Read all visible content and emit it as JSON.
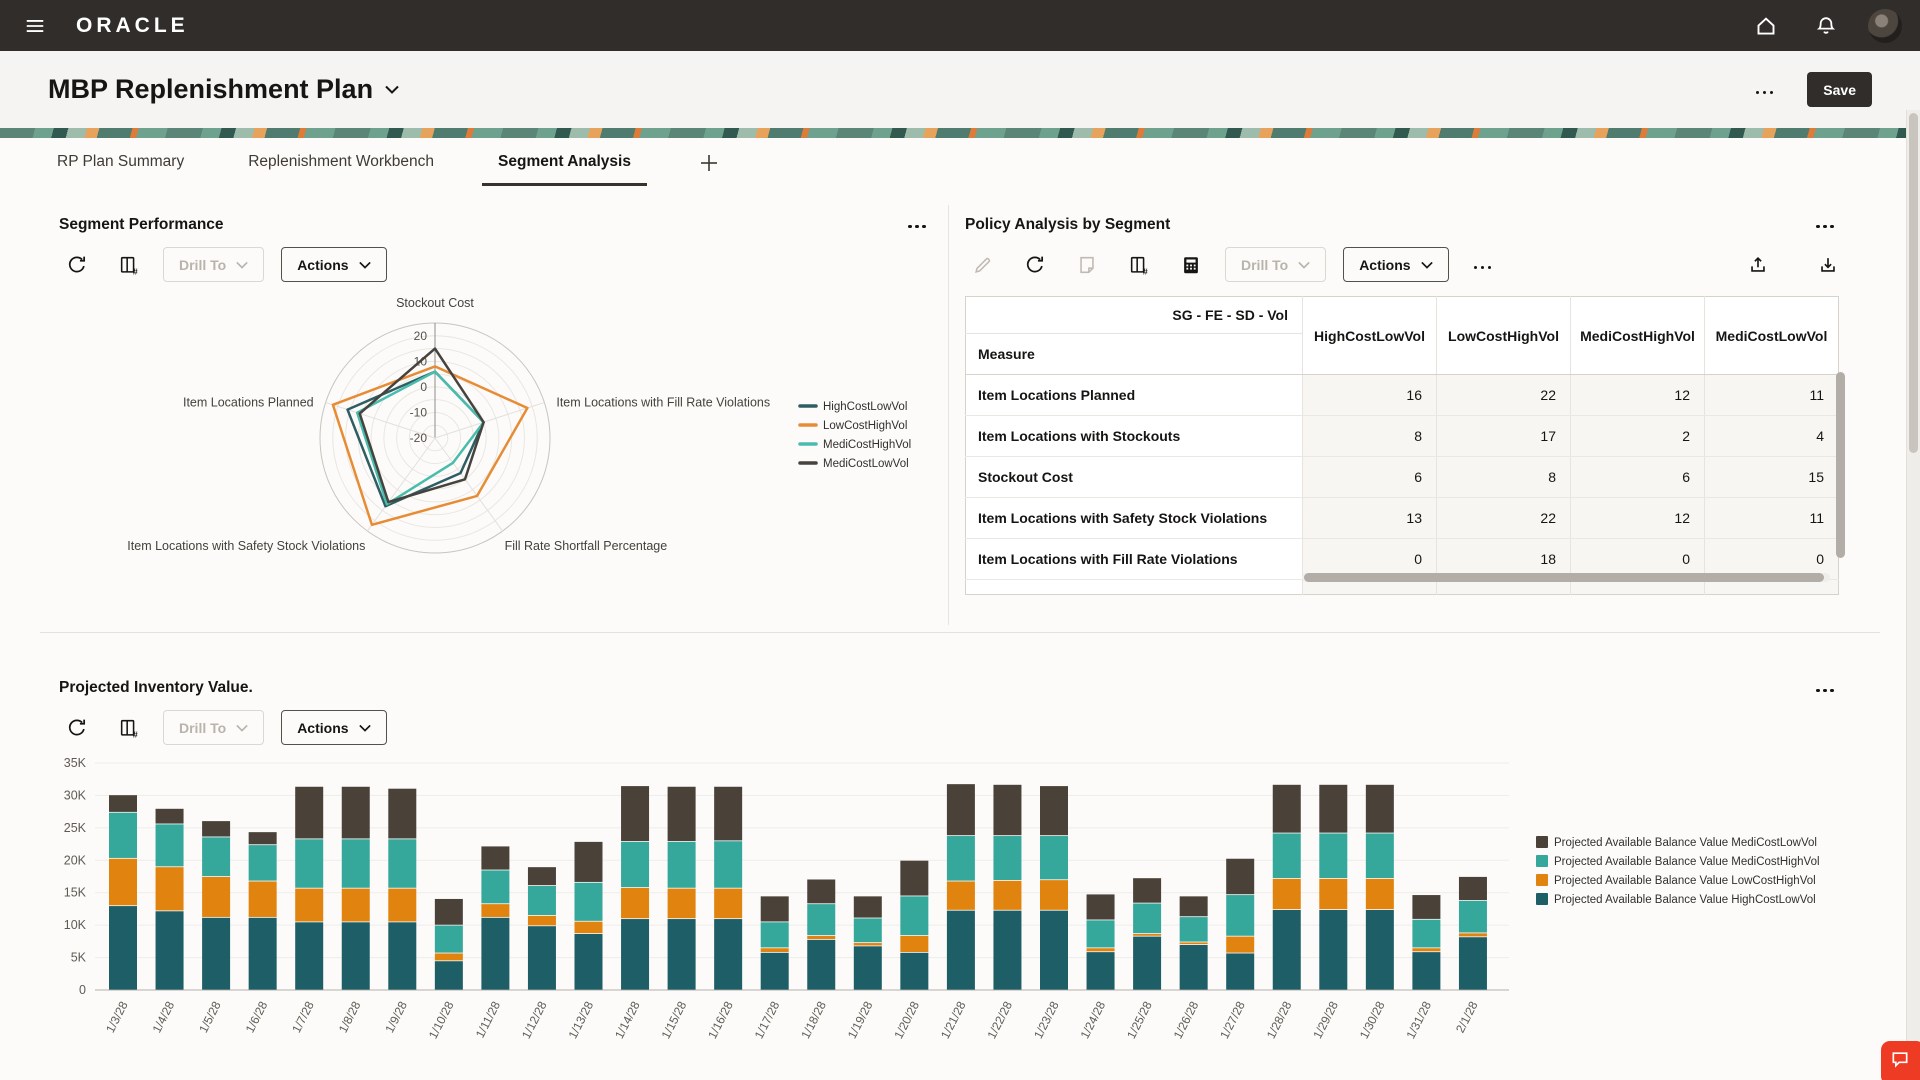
{
  "topbar": {
    "brand": "ORACLE"
  },
  "titlebar": {
    "title": "MBP Replenishment Plan",
    "save_label": "Save"
  },
  "tabs": [
    {
      "label": "RP Plan Summary",
      "active": false
    },
    {
      "label": "Replenishment Workbench",
      "active": false
    },
    {
      "label": "Segment Analysis",
      "active": true
    }
  ],
  "toolbar_labels": {
    "drill_to": "Drill To",
    "actions": "Actions"
  },
  "icons": {
    "hamburger-menu": "≡",
    "home": "⌂",
    "notifications-bell": "🔔",
    "user-avatar": "👤",
    "chevron-down": "⌄",
    "overflow-ellipsis": "⋯",
    "refresh": "⟳",
    "open-report-hash": "▤#",
    "edit-pencil": "✎",
    "annotate-note": "🗎",
    "calculator": "🖩",
    "upload-export": "↥",
    "download-export": "↧",
    "add-tab-plus": "+",
    "feedback-chat": "💬"
  },
  "segment_performance": {
    "title": "Segment Performance"
  },
  "policy_analysis": {
    "title": "Policy Analysis by Segment",
    "table": {
      "group_header": "SG - FE - SD - Vol",
      "measure_header": "Measure",
      "columns": [
        "HighCostLowVol",
        "LowCostHighVol",
        "MediCostHighVol",
        "MediCostLowVol"
      ],
      "rows": [
        {
          "measure": "Item Locations Planned",
          "values": [
            16,
            22,
            12,
            11
          ]
        },
        {
          "measure": "Item Locations with Stockouts",
          "values": [
            8,
            17,
            2,
            4
          ]
        },
        {
          "measure": "Stockout Cost",
          "values": [
            6,
            8,
            6,
            15
          ]
        },
        {
          "measure": "Item Locations with Safety Stock Violations",
          "values": [
            13,
            22,
            12,
            11
          ]
        },
        {
          "measure": "Item Locations with Fill Rate Violations",
          "values": [
            0,
            18,
            0,
            0
          ]
        }
      ]
    }
  },
  "projected_inventory": {
    "title": "Projected Inventory Value."
  },
  "chart_data": [
    {
      "type": "radar",
      "title": "Segment Performance",
      "axes": [
        "Stockout Cost",
        "Item Locations with Fill Rate Violations",
        "Fill Rate Shortfall Percentage",
        "Item Locations with Safety Stock Violations",
        "Item Locations Planned"
      ],
      "scale": {
        "min": -20,
        "max": 25,
        "ring_step": 5,
        "tick_labels": [
          20,
          10,
          0,
          -10,
          -20
        ]
      },
      "grid": true,
      "legend_position": "right",
      "series": [
        {
          "name": "HighCostLowVol",
          "color": "#2e5e64",
          "values": [
            6,
            0,
            -3,
            13,
            16
          ]
        },
        {
          "name": "LowCostHighVol",
          "color": "#e78c35",
          "values": [
            8,
            18,
            8,
            22,
            22
          ]
        },
        {
          "name": "MediCostHighVol",
          "color": "#49bdac",
          "values": [
            6,
            0,
            -8,
            12,
            12
          ]
        },
        {
          "name": "MediCostLowVol",
          "color": "#46423d",
          "values": [
            15,
            0,
            0,
            11,
            11
          ]
        }
      ]
    },
    {
      "type": "bar",
      "stacked": true,
      "title": "Projected Inventory Value.",
      "x": [
        "1/3/28",
        "1/4/28",
        "1/5/28",
        "1/6/28",
        "1/7/28",
        "1/8/28",
        "1/9/28",
        "1/10/28",
        "1/11/28",
        "1/12/28",
        "1/13/28",
        "1/14/28",
        "1/15/28",
        "1/16/28",
        "1/17/28",
        "1/18/28",
        "1/19/28",
        "1/20/28",
        "1/21/28",
        "1/22/28",
        "1/23/28",
        "1/24/28",
        "1/25/28",
        "1/26/28",
        "1/27/28",
        "1/28/28",
        "1/29/28",
        "1/30/28",
        "1/31/28",
        "2/1/28"
      ],
      "values_unit": "thousands",
      "ylim": [
        0,
        35
      ],
      "ytick_labels": [
        "0",
        "5K",
        "10K",
        "15K",
        "20K",
        "25K",
        "30K",
        "35K"
      ],
      "grid": true,
      "legend_position": "right",
      "series": [
        {
          "name": "Projected Available Balance Value HighCostLowVol",
          "color": "#1e5e66",
          "values": [
            13,
            12.2,
            11.2,
            11.2,
            10.5,
            10.5,
            10.5,
            4.5,
            11.2,
            9.9,
            8.7,
            11,
            11,
            11,
            5.8,
            7.8,
            6.8,
            5.8,
            12.3,
            12.3,
            12.3,
            5.9,
            8.3,
            7,
            5.7,
            12.4,
            12.4,
            12.4,
            5.9,
            8.2
          ]
        },
        {
          "name": "Projected Available Balance Value LowCostHighVol",
          "color": "#e1830f",
          "values": [
            7.3,
            6.8,
            6.3,
            5.6,
            5.2,
            5.2,
            5.2,
            1.2,
            2.1,
            1.6,
            1.9,
            4.8,
            4.7,
            4.7,
            0.7,
            0.6,
            0.5,
            2.6,
            4.5,
            4.6,
            4.7,
            0.6,
            0.4,
            0.4,
            2.6,
            4.8,
            4.8,
            4.8,
            0.6,
            0.6
          ]
        },
        {
          "name": "Projected Available Balance Value MediCostHighVol",
          "color": "#36a79b",
          "values": [
            7.1,
            6.6,
            6.1,
            5.6,
            7.6,
            7.6,
            7.6,
            4.3,
            5.2,
            4.6,
            6.0,
            7.1,
            7.2,
            7.3,
            4.0,
            4.9,
            3.8,
            6.1,
            7.0,
            6.9,
            6.8,
            4.3,
            4.7,
            3.9,
            6.4,
            7.0,
            7.0,
            7.0,
            4.4,
            5.0
          ]
        },
        {
          "name": "Projected Available Balance Value MediCostLowVol",
          "color": "#4a4139",
          "values": [
            2.7,
            2.4,
            2.5,
            2.0,
            8.1,
            8.1,
            7.8,
            4.1,
            3.7,
            2.9,
            6.3,
            8.6,
            8.5,
            8.4,
            4.0,
            3.8,
            3.4,
            5.5,
            8.0,
            7.9,
            7.7,
            4.0,
            3.9,
            3.2,
            5.6,
            7.5,
            7.5,
            7.5,
            3.8,
            3.7
          ]
        }
      ]
    }
  ]
}
